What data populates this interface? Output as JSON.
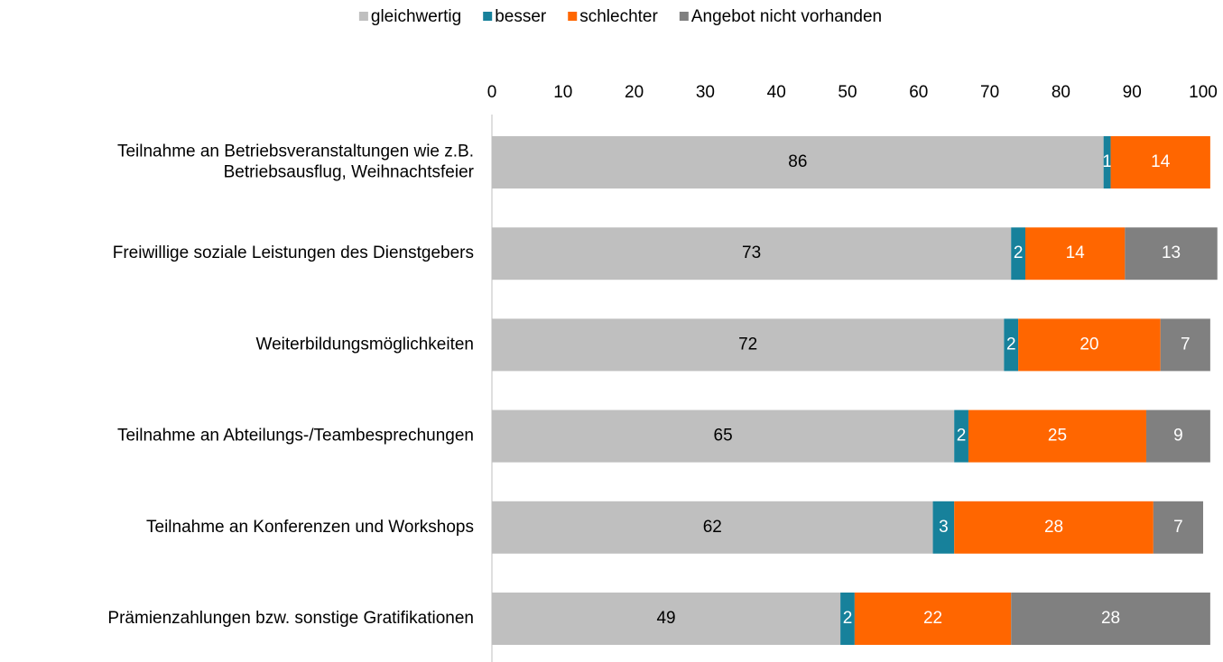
{
  "chart_data": {
    "type": "stacked-bar-horizontal",
    "categories": [
      "Teilnahme an Betriebsveranstaltungen wie z.B.\nBetriebsausflug, Weihnachtsfeier",
      "Freiwillige soziale Leistungen des Dienstgebers",
      "Weiterbildungsmöglichkeiten",
      "Teilnahme an Abteilungs-/Teambesprechungen",
      "Teilnahme an Konferenzen und Workshops",
      "Prämienzahlungen bzw. sonstige Gratifikationen"
    ],
    "series": [
      {
        "name": "gleichwertig",
        "color": "#bfbfbf",
        "label_color": "#000000",
        "values": [
          86,
          73,
          72,
          65,
          62,
          49
        ]
      },
      {
        "name": "besser",
        "color": "#17819b",
        "label_color": "#ffffff",
        "values": [
          1,
          2,
          2,
          2,
          3,
          2
        ]
      },
      {
        "name": "schlechter",
        "color": "#ff6600",
        "label_color": "#ffffff",
        "values": [
          14,
          14,
          20,
          25,
          28,
          22
        ]
      },
      {
        "name": "Angebot nicht vorhanden",
        "color": "#808080",
        "label_color": "#ffffff",
        "values": [
          null,
          13,
          7,
          9,
          7,
          28
        ]
      }
    ],
    "xlim": [
      0,
      100
    ],
    "xticks": [
      0,
      10,
      20,
      30,
      40,
      50,
      60,
      70,
      80,
      90,
      100
    ],
    "legend": "top",
    "grid": false
  }
}
